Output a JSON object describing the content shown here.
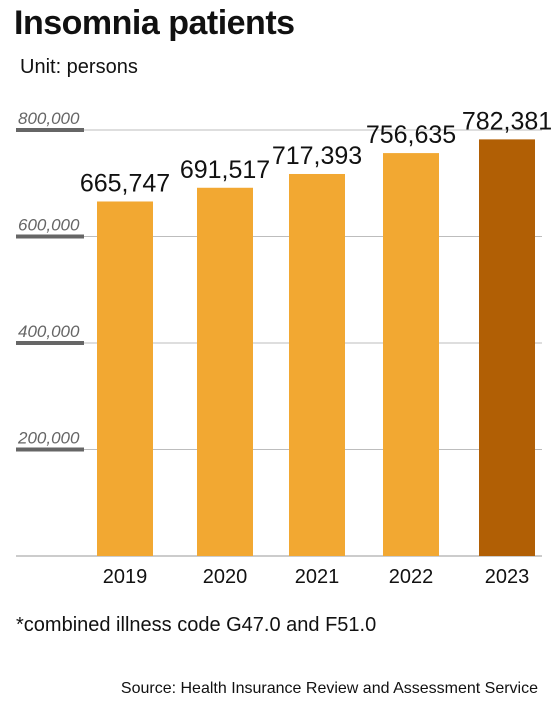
{
  "header": {
    "title": "Insomnia patients",
    "unit": "Unit: persons"
  },
  "footer": {
    "note": "*combined illness code G47.0 and F51.0",
    "source": "Source: Health Insurance Review and Assessment Service"
  },
  "chart_data": {
    "type": "bar",
    "title": "Insomnia patients",
    "xlabel": "",
    "ylabel": "",
    "categories": [
      "2019",
      "2020",
      "2021",
      "2022",
      "2023"
    ],
    "values": [
      665747,
      691517,
      717393,
      756635,
      782381
    ],
    "value_labels": [
      "665,747",
      "691,517",
      "717,393",
      "756,635",
      "782,381"
    ],
    "ylim": [
      0,
      800000
    ],
    "yticks": [
      200000,
      400000,
      600000,
      800000
    ],
    "ytick_labels": [
      "200,000",
      "400,000",
      "600,000",
      "800,000"
    ],
    "grid": true,
    "colors": {
      "bar": "#F2A832",
      "highlight_bar": "#B15F05",
      "highlight_category": "2023",
      "grid": "#bdbdbd",
      "tick_marker": "#666666",
      "axis": "#999999"
    }
  }
}
